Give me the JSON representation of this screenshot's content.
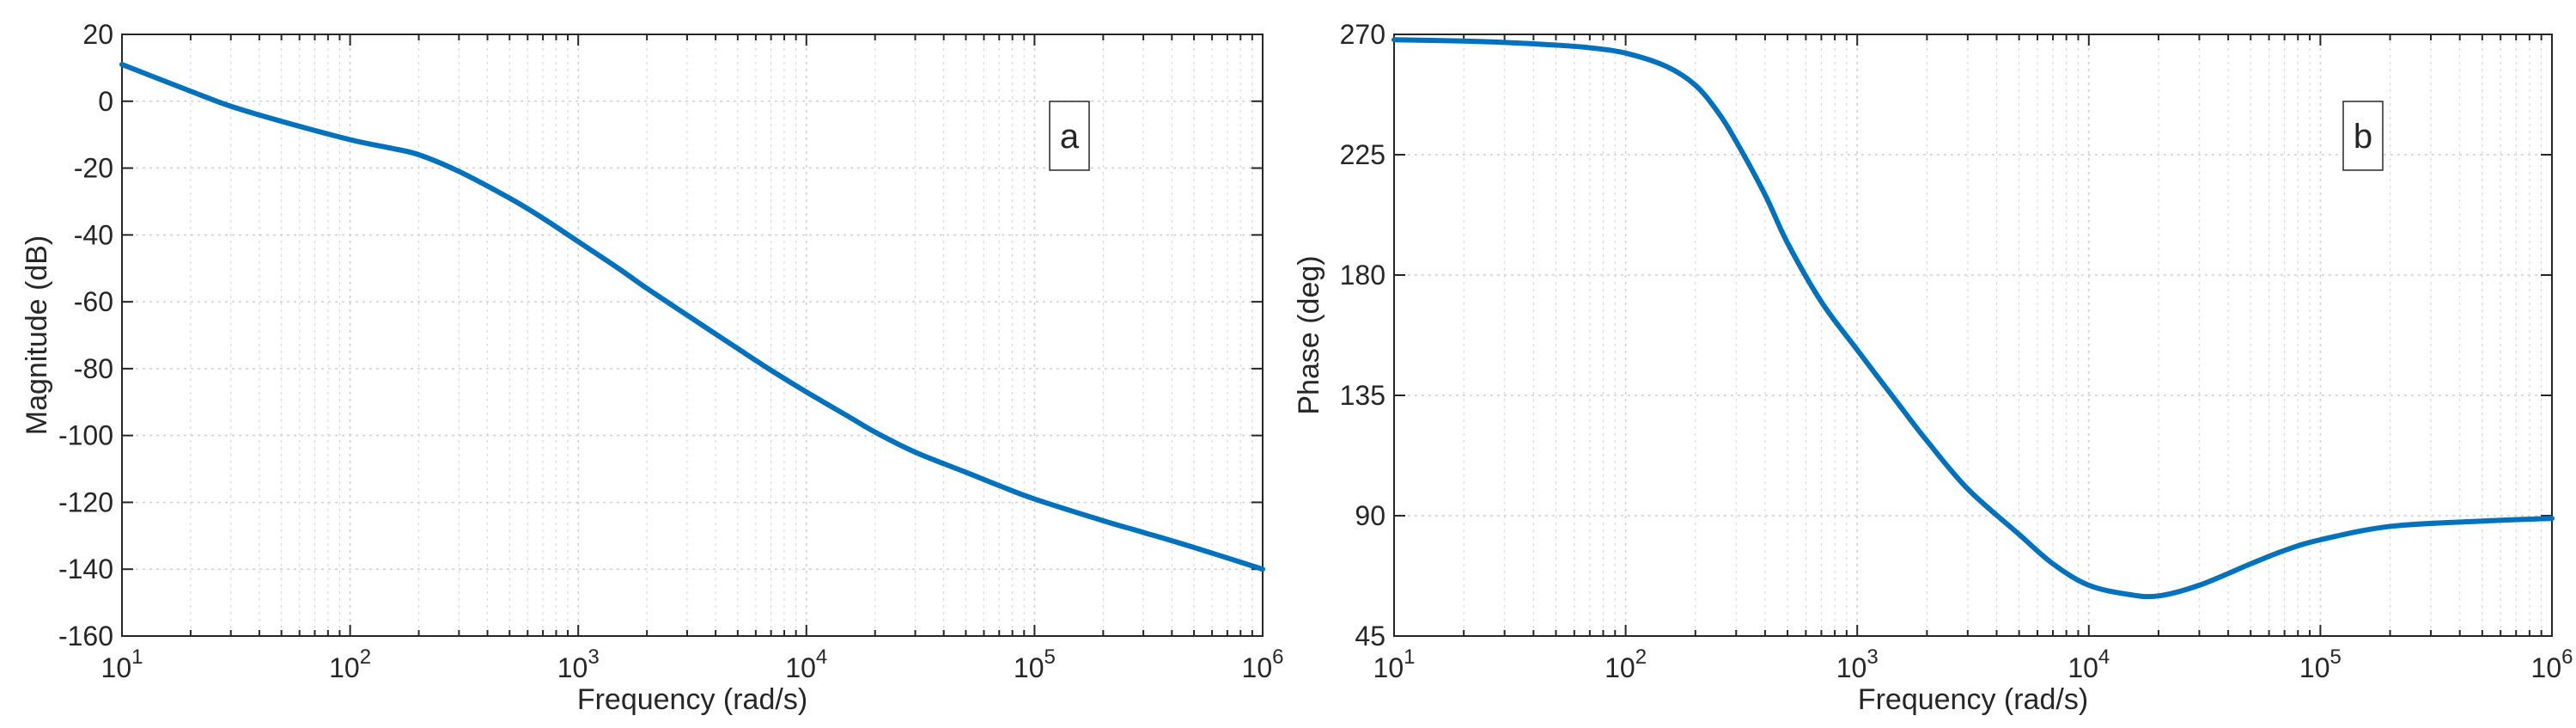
{
  "figure": {
    "line_color": "#0072BD"
  },
  "chart_data": [
    {
      "type": "line",
      "panel_label": "a",
      "xlabel": "Frequency  (rad/s)",
      "ylabel": "Magnitude (dB)",
      "xscale": "log",
      "xlim": [
        10,
        1000000
      ],
      "ylim": [
        -160,
        20
      ],
      "x_ticks": [
        10,
        100,
        1000,
        10000,
        100000,
        1000000
      ],
      "y_ticks": [
        20,
        0,
        -20,
        -40,
        -60,
        -80,
        -100,
        -120,
        -140,
        -160
      ],
      "grid": true,
      "series": [
        {
          "x": [
            10,
            20,
            30,
            50,
            100,
            150,
            200,
            300,
            500,
            700,
            1000,
            1500,
            2000,
            3000,
            5000,
            7000,
            10000,
            15000,
            20000,
            30000,
            50000,
            70000,
            100000,
            200000,
            300000,
            500000,
            1000000
          ],
          "values": [
            11,
            3,
            -1.5,
            -6,
            -11.5,
            -14,
            -16,
            -21,
            -29,
            -35,
            -42,
            -50,
            -56,
            -64,
            -74,
            -80.5,
            -87,
            -94,
            -99,
            -105,
            -111,
            -115,
            -119,
            -125.5,
            -129,
            -133.5,
            -140
          ]
        }
      ]
    },
    {
      "type": "line",
      "panel_label": "b",
      "xlabel": "Frequency  (rad/s)",
      "ylabel": "Phase (deg)",
      "xscale": "log",
      "xlim": [
        10,
        1000000
      ],
      "ylim": [
        45,
        270
      ],
      "x_ticks": [
        10,
        100,
        1000,
        10000,
        100000,
        1000000
      ],
      "y_ticks": [
        270,
        225,
        180,
        135,
        90,
        45
      ],
      "grid": true,
      "series": [
        {
          "x": [
            10,
            20,
            30,
            50,
            70,
            100,
            150,
            200,
            250,
            300,
            400,
            500,
            700,
            1000,
            1500,
            2000,
            3000,
            5000,
            7000,
            10000,
            15000,
            20000,
            30000,
            50000,
            70000,
            100000,
            200000,
            500000,
            1000000
          ],
          "values": [
            268,
            267.5,
            267,
            266,
            265,
            263,
            258,
            251,
            241,
            230,
            210,
            192,
            170,
            152,
            132,
            118,
            100,
            83,
            72,
            64,
            60.5,
            60,
            64,
            72,
            77,
            81,
            86,
            88,
            89
          ]
        }
      ]
    }
  ]
}
